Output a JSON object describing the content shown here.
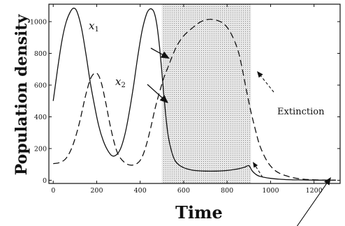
{
  "chart_data": {
    "type": "line",
    "xlabel": "Time",
    "ylabel": "Population density",
    "xlim": [
      -20,
      1320
    ],
    "ylim": [
      -20,
      1110
    ],
    "xticks": [
      0,
      200,
      400,
      600,
      800,
      1000,
      1200
    ],
    "yticks": [
      0,
      200,
      400,
      600,
      800,
      1000
    ],
    "shaded_region": [
      500,
      910
    ],
    "series": [
      {
        "name": "x",
        "subscript": "1",
        "style": "solid",
        "x": [
          0,
          20,
          40,
          60,
          80,
          95,
          110,
          130,
          150,
          170,
          190,
          210,
          230,
          250,
          270,
          290,
          310,
          330,
          350,
          370,
          390,
          410,
          430,
          445,
          460,
          470,
          480,
          490,
          500,
          510,
          520,
          530,
          545,
          560,
          580,
          600,
          620,
          650,
          700,
          750,
          800,
          850,
          880,
          900,
          915,
          930,
          950,
          1000,
          1050,
          1100,
          1150,
          1200,
          1250,
          1300
        ],
        "y": [
          500,
          700,
          880,
          1000,
          1065,
          1085,
          1060,
          960,
          800,
          620,
          470,
          340,
          250,
          190,
          155,
          160,
          200,
          290,
          430,
          600,
          790,
          950,
          1050,
          1080,
          1070,
          1030,
          950,
          830,
          680,
          520,
          380,
          270,
          180,
          125,
          95,
          80,
          70,
          62,
          58,
          58,
          62,
          72,
          82,
          92,
          60,
          40,
          25,
          12,
          6,
          3,
          2,
          1,
          0.5,
          0.2
        ]
      },
      {
        "name": "x",
        "subscript": "2",
        "style": "dashed",
        "x": [
          0,
          30,
          60,
          90,
          120,
          150,
          175,
          200,
          220,
          240,
          260,
          280,
          300,
          330,
          360,
          390,
          410,
          430,
          450,
          470,
          490,
          510,
          530,
          550,
          570,
          600,
          640,
          680,
          720,
          760,
          790,
          820,
          850,
          870,
          890,
          910,
          930,
          950,
          980,
          1010,
          1040,
          1080,
          1120,
          1160,
          1200,
          1250,
          1300
        ],
        "y": [
          105,
          112,
          140,
          220,
          360,
          540,
          650,
          675,
          620,
          500,
          360,
          240,
          160,
          110,
          95,
          110,
          150,
          230,
          340,
          460,
          560,
          650,
          720,
          790,
          850,
          910,
          960,
          1000,
          1015,
          1005,
          980,
          920,
          820,
          700,
          560,
          430,
          320,
          220,
          130,
          75,
          45,
          25,
          12,
          6,
          3,
          1,
          0.5
        ]
      }
    ],
    "annotations": [
      {
        "text": "Extinction"
      }
    ]
  }
}
